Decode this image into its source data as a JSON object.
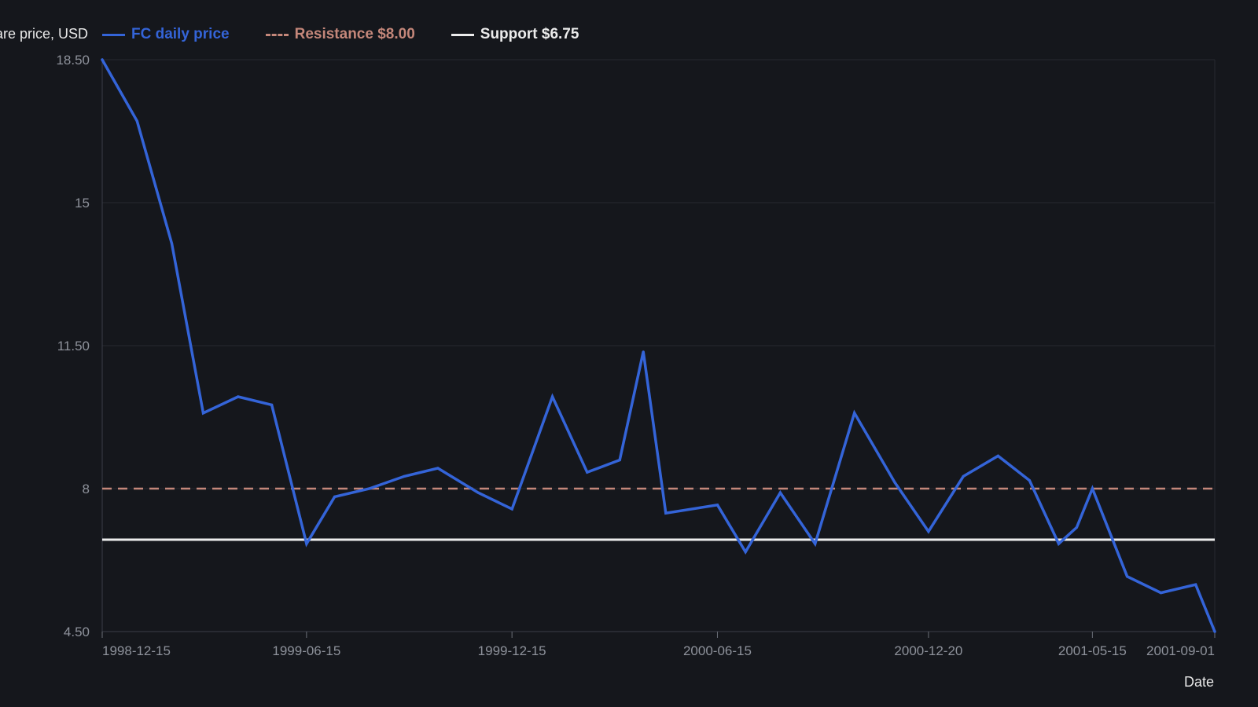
{
  "chart_data": {
    "type": "line",
    "title": "",
    "xlabel": "Date",
    "ylabel": "Share price, USD",
    "ylim": [
      4.5,
      18.5
    ],
    "y_ticks": [
      "18.50",
      "15",
      "11.50",
      "8",
      "4.50"
    ],
    "x_tick_labels": [
      "1998-12-15",
      "1999-06-15",
      "1999-12-15",
      "2000-06-15",
      "2000-12-20",
      "2001-05-15",
      "2001-09-01"
    ],
    "legend_position": "top-left",
    "grid": true,
    "series": [
      {
        "name": "FC daily price",
        "color": "#3464d8",
        "style": "solid",
        "x": [
          "1998-12-15",
          "1999-01-15",
          "1999-02-15",
          "1999-03-15",
          "1999-04-15",
          "1999-05-15",
          "1999-06-15",
          "1999-07-10",
          "1999-08-10",
          "1999-09-10",
          "1999-10-10",
          "1999-11-15",
          "1999-12-15",
          "2000-01-20",
          "2000-02-20",
          "2000-03-20",
          "2000-04-10",
          "2000-04-30",
          "2000-06-15",
          "2000-07-10",
          "2000-08-10",
          "2000-09-10",
          "2000-10-15",
          "2000-11-20",
          "2000-12-20",
          "2001-01-20",
          "2001-02-20",
          "2001-03-20",
          "2001-04-15",
          "2001-05-01",
          "2001-05-15",
          "2001-06-15",
          "2001-07-15",
          "2001-08-15",
          "2001-09-01"
        ],
        "values": [
          18.5,
          17.0,
          14.0,
          9.85,
          10.25,
          10.05,
          6.65,
          7.8,
          8.0,
          8.3,
          8.5,
          7.9,
          7.5,
          10.25,
          8.4,
          8.7,
          11.35,
          7.4,
          7.6,
          6.45,
          7.9,
          6.65,
          9.85,
          8.15,
          6.95,
          8.3,
          8.8,
          8.2,
          6.65,
          7.05,
          8.0,
          5.85,
          5.45,
          5.65,
          4.5
        ]
      },
      {
        "name": "Resistance $8.00",
        "color": "#c4877a",
        "style": "dashed",
        "value": 8.0
      },
      {
        "name": "Support $6.75",
        "color": "#ececec",
        "style": "solid",
        "value": 6.75
      }
    ]
  }
}
